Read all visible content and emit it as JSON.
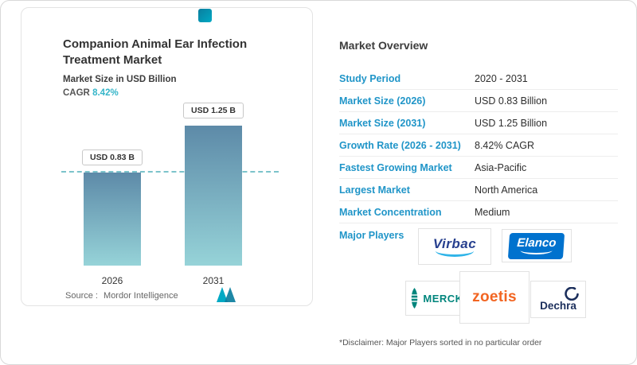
{
  "colors": {
    "accent": "#35b5c9",
    "label_blue": "#2095c8",
    "bar_top": "#5d8aa8",
    "bar_bottom": "#96d3d8",
    "elanco_blue": "#0072ce",
    "zoetis_orange": "#f26522",
    "merck_teal": "#00857c",
    "dechra_navy": "#1c2f5c",
    "virbac_blue": "#27408f"
  },
  "icons": {
    "mordor_logo_mark": "teal-gradient-square",
    "mordor_logo": "double-m-mountain",
    "merck_lens": "striped-vesica-leaf",
    "dechra_swoosh": "open-circle-arc",
    "virbac_swoosh": "cyan-underline-arc",
    "elanco_swoosh": "white-underline-arc"
  },
  "left_card": {
    "title": "Companion Animal Ear Infection Treatment Market",
    "subtitle": "Market Size in USD Billion",
    "cagr_label": "CAGR",
    "cagr_value": "8.42%",
    "source_label": "Source :",
    "source_value": "Mordor Intelligence"
  },
  "chart_data": {
    "type": "bar",
    "title": "Companion Animal Ear Infection Treatment Market",
    "ylabel": "Market Size in USD Billion",
    "categories": [
      "2026",
      "2031"
    ],
    "values": [
      0.83,
      1.25
    ],
    "value_labels": [
      "USD 0.83 B",
      "USD 1.25 B"
    ],
    "ylim": [
      0,
      1.4
    ],
    "reference_line": 0.83,
    "cagr": "8.42%",
    "grid": false,
    "legend": "none"
  },
  "overview": {
    "heading": "Market Overview",
    "rows": [
      {
        "label": "Study Period",
        "value": "2020 - 2031"
      },
      {
        "label": "Market Size (2026)",
        "value": "USD 0.83 Billion"
      },
      {
        "label": "Market Size (2031)",
        "value": "USD 1.25 Billion"
      },
      {
        "label": "Growth Rate (2026 - 2031)",
        "value": "8.42% CAGR"
      },
      {
        "label": "Fastest Growing Market",
        "value": "Asia-Pacific"
      },
      {
        "label": "Largest Market",
        "value": "North America"
      },
      {
        "label": "Market Concentration",
        "value": "Medium"
      }
    ],
    "major_players_label": "Major Players",
    "players": [
      "Virbac",
      "Elanco",
      "MERCK",
      "zoetis",
      "Dechra"
    ],
    "disclaimer": "*Disclaimer: Major Players sorted in no particular order"
  }
}
